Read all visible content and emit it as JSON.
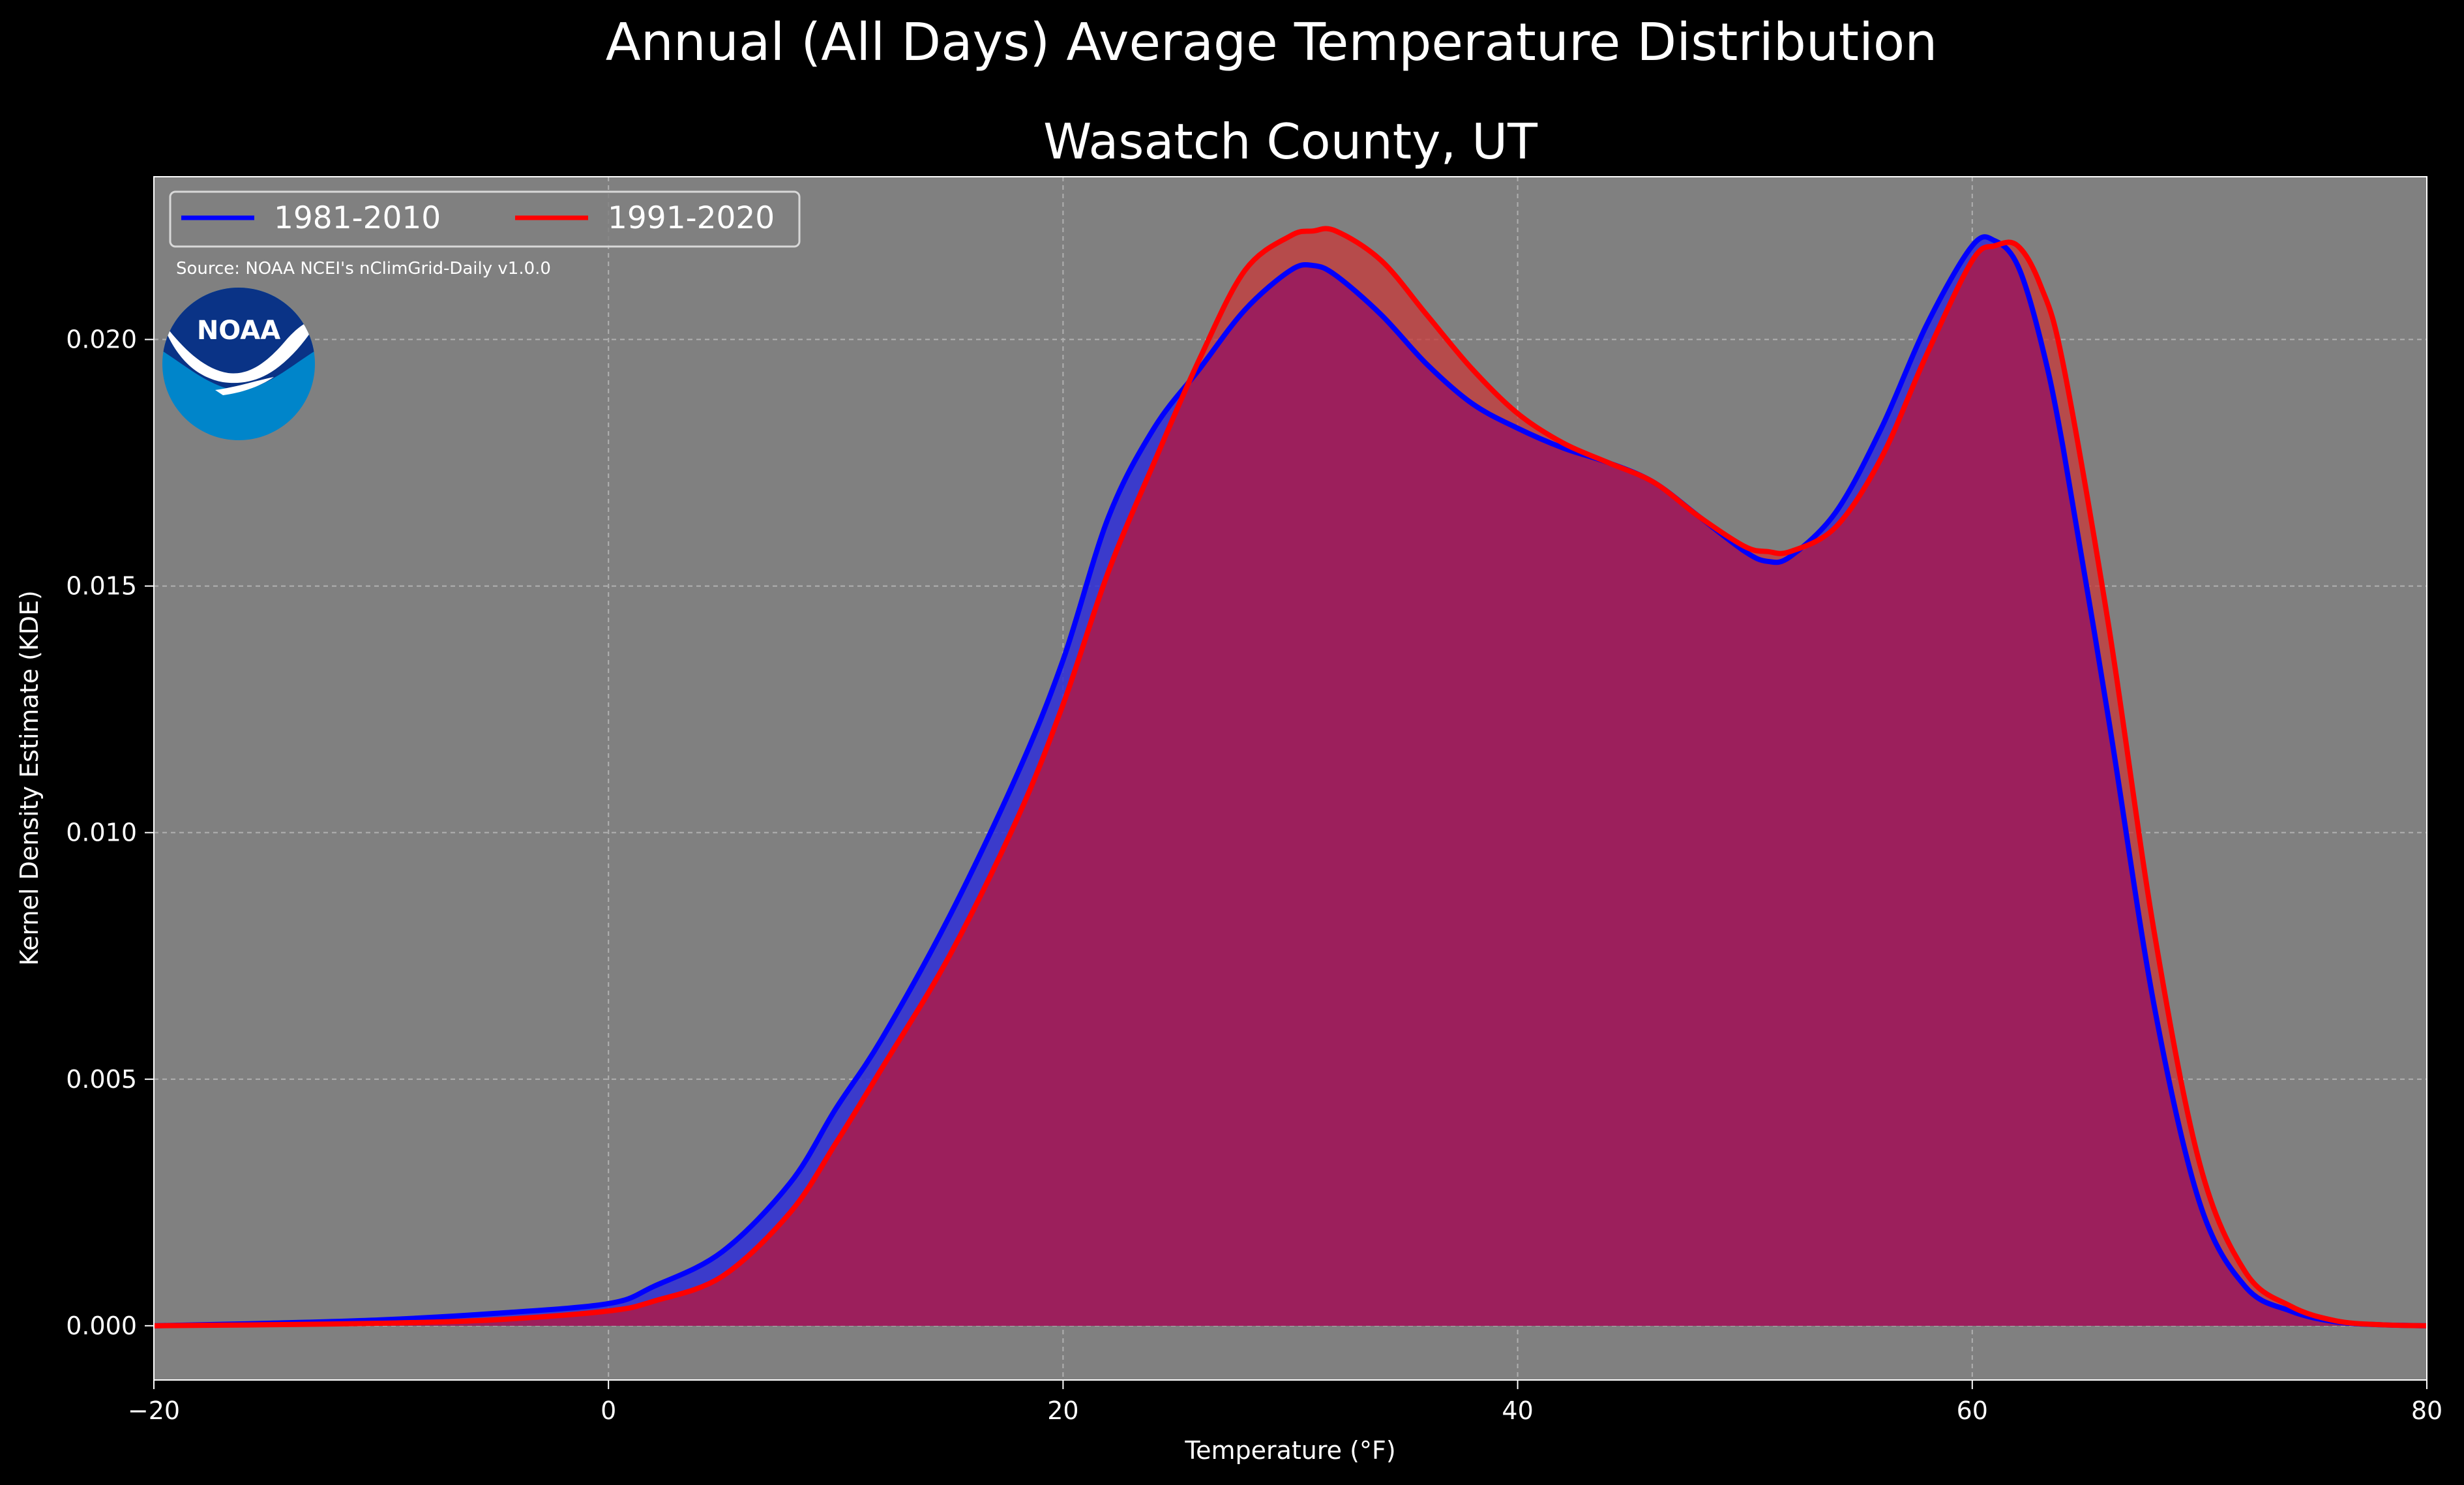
{
  "title": "Annual (All Days) Average Temperature Distribution",
  "subtitle": "Wasatch County, UT",
  "source_note": "Source: NOAA NCEI's nClimGrid-Daily v1.0.0",
  "logo_text": "NOAA",
  "colors": {
    "figure_background": "#000000",
    "axes_background": "#808080",
    "grid": "#b0b0b0",
    "series_1981": "#0000ff",
    "series_1991": "#ff0000",
    "overlap_fill": "#9c1f5c",
    "logo_outer": "#0085ca",
    "logo_inner": "#0a3386"
  },
  "chart_data": {
    "type": "area",
    "title": "Annual (All Days) Average Temperature Distribution",
    "subtitle": "Wasatch County, UT",
    "xlabel": "Temperature ($^\\circ$F)",
    "xlabel_display": "Temperature (°F)",
    "ylabel": "Kernel Density Estimate (KDE)",
    "xlim": [
      -20,
      80
    ],
    "ylim": [
      -0.0011,
      0.0233
    ],
    "xticks": [
      -20,
      0,
      20,
      40,
      60,
      80
    ],
    "xtick_labels": [
      "−20",
      "0",
      "20",
      "40",
      "60",
      "80"
    ],
    "yticks": [
      0.0,
      0.005,
      0.01,
      0.015,
      0.02
    ],
    "ytick_labels": [
      "0.000",
      "0.005",
      "0.010",
      "0.015",
      "0.020"
    ],
    "grid": true,
    "legend_position": "upper-left",
    "legend_columns": 2,
    "x": [
      -20,
      -15,
      -10,
      -5,
      0,
      2,
      5,
      8,
      10,
      12,
      15,
      18,
      20,
      22,
      24,
      26,
      28,
      30,
      31,
      32,
      34,
      36,
      38,
      40,
      42,
      44,
      46,
      48,
      50,
      51,
      52,
      54,
      56,
      58,
      60,
      61,
      62,
      63,
      64,
      66,
      68,
      70,
      72,
      74,
      76,
      78,
      80
    ],
    "series": [
      {
        "name": "1981-2010",
        "color": "#0000ff",
        "values": [
          0.0,
          5e-05,
          0.00012,
          0.00025,
          0.00045,
          0.0008,
          0.0015,
          0.0029,
          0.0044,
          0.0058,
          0.0083,
          0.0112,
          0.0135,
          0.0164,
          0.0182,
          0.0194,
          0.0206,
          0.0214,
          0.0215,
          0.0213,
          0.0205,
          0.0195,
          0.0187,
          0.0182,
          0.0178,
          0.0175,
          0.0171,
          0.0164,
          0.0157,
          0.0155,
          0.0156,
          0.0165,
          0.0182,
          0.0203,
          0.0219,
          0.022,
          0.0215,
          0.02,
          0.0178,
          0.0123,
          0.0065,
          0.0025,
          0.0008,
          0.0003,
          8e-05,
          2e-05,
          0.0
        ]
      },
      {
        "name": "1991-2020",
        "color": "#ff0000",
        "values": [
          0.0,
          2e-05,
          5e-05,
          0.00012,
          0.0003,
          0.0005,
          0.001,
          0.0023,
          0.0037,
          0.0052,
          0.0075,
          0.0103,
          0.0126,
          0.0153,
          0.0175,
          0.0196,
          0.0214,
          0.0221,
          0.0222,
          0.0222,
          0.0216,
          0.0205,
          0.0194,
          0.0185,
          0.0179,
          0.0175,
          0.0171,
          0.0164,
          0.0158,
          0.0157,
          0.0157,
          0.0162,
          0.0176,
          0.0197,
          0.0216,
          0.0219,
          0.0219,
          0.0211,
          0.0195,
          0.0142,
          0.008,
          0.0033,
          0.0011,
          0.0004,
          0.0001,
          2e-05,
          0.0
        ]
      }
    ]
  }
}
